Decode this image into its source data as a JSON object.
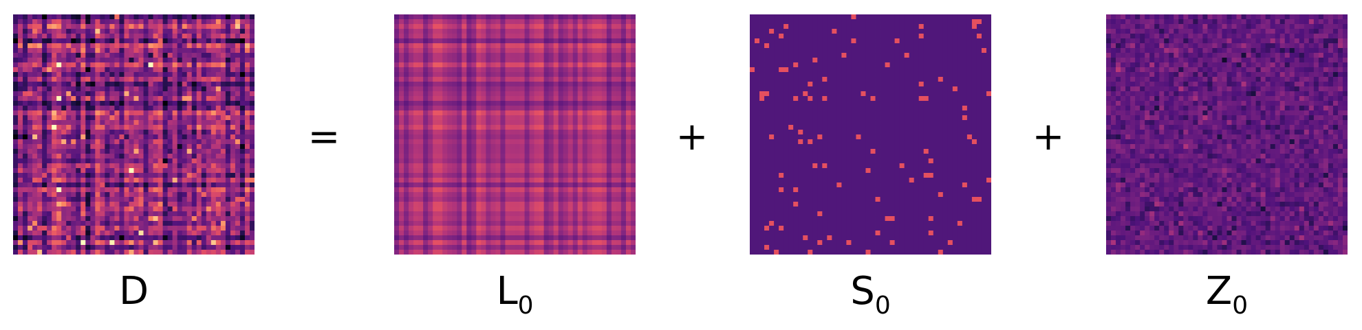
{
  "colormap": "magma",
  "matrix_size": 50,
  "panels": [
    {
      "id": "D",
      "label": "D",
      "subscript": ""
    },
    {
      "id": "L",
      "label": "L",
      "subscript": "0"
    },
    {
      "id": "S",
      "label": "S",
      "subscript": "0"
    },
    {
      "id": "Z",
      "label": "Z",
      "subscript": "0"
    }
  ],
  "operators": [
    "=",
    "+",
    "+"
  ],
  "colors": {
    "sparse_background": "#50177a",
    "sparse_spike": "#e5505f"
  }
}
